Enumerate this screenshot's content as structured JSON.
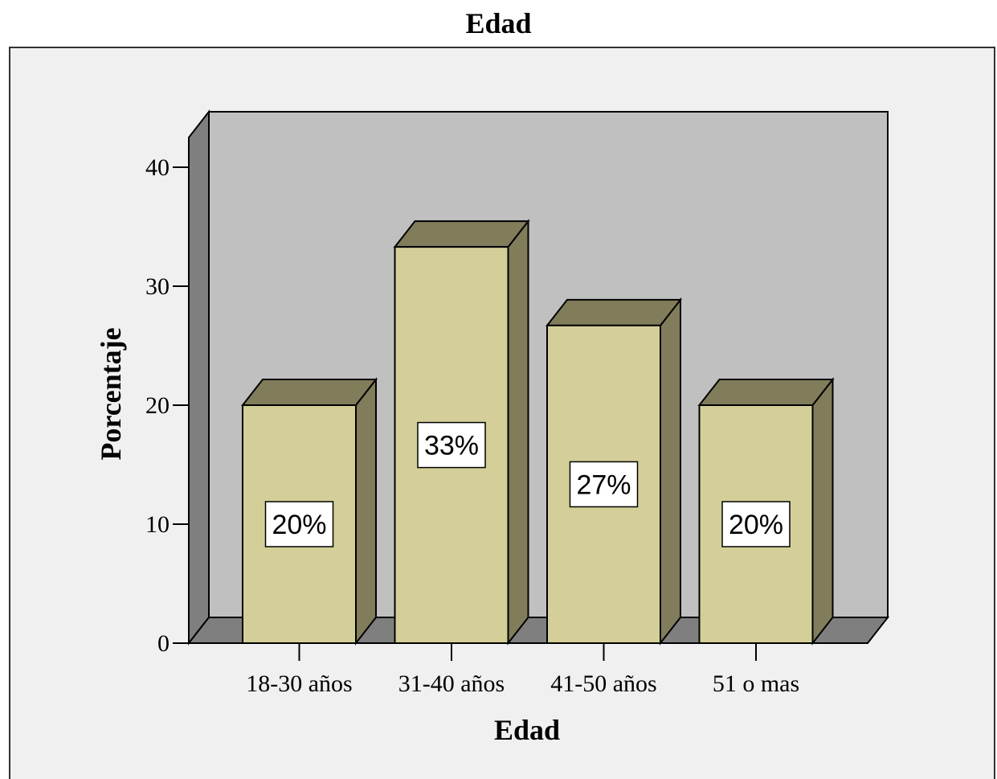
{
  "chart_data": {
    "type": "bar",
    "title": "Edad",
    "xlabel": "Edad",
    "ylabel": "Porcentaje",
    "categories": [
      "18-30 años",
      "31-40 años",
      "41-50 años",
      "51 o mas"
    ],
    "values": [
      20,
      33.3,
      26.7,
      20
    ],
    "value_labels": [
      "20%",
      "33%",
      "27%",
      "20%"
    ],
    "yticks": [
      0,
      10,
      20,
      30,
      40
    ],
    "ylim": [
      0,
      40
    ],
    "grid": false,
    "legend": "none",
    "style": "3d",
    "colors": {
      "bar_front": "#d4cf98",
      "bar_side": "#817c5a",
      "wall": "#c0c0c0",
      "floor": "#7f7f7f",
      "plot_background": "#f0f0f0"
    }
  }
}
